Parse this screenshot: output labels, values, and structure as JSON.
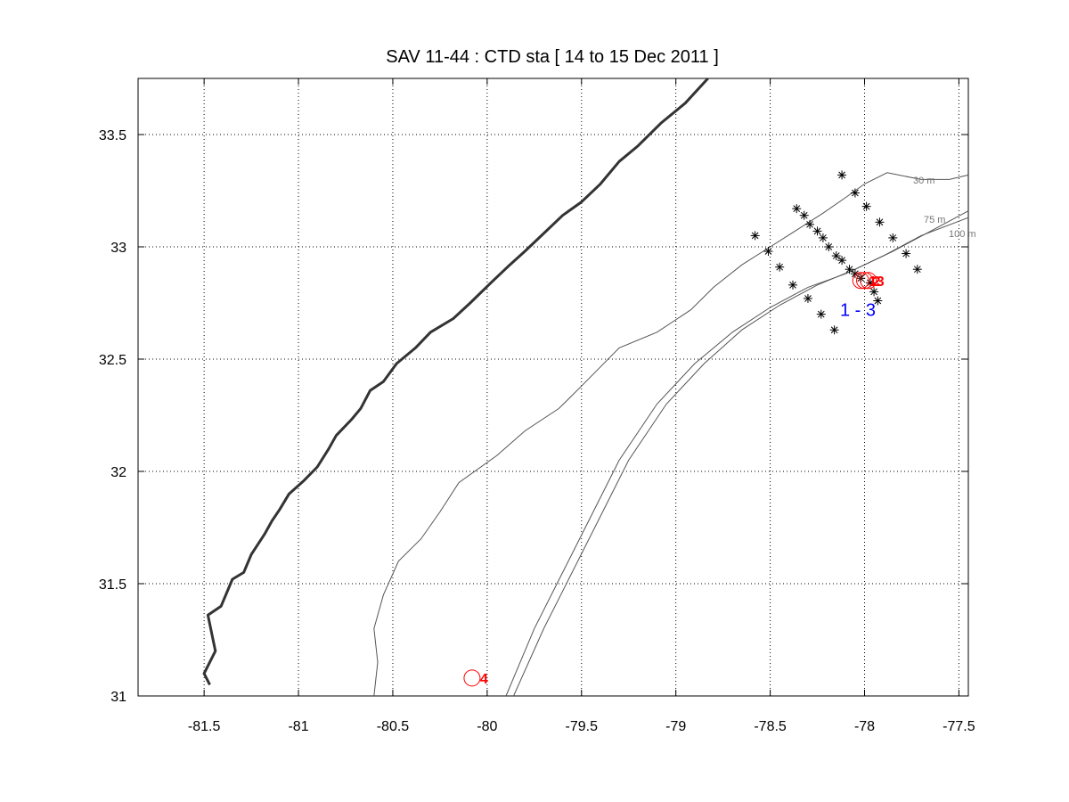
{
  "title": "SAV 11-44 : CTD  sta   [ 14 to 15 Dec 2011 ]",
  "x_ticks": [
    "-81.5",
    "-81",
    "-80.5",
    "-80",
    "-79.5",
    "-79",
    "-78.5",
    "-78",
    "-77.5"
  ],
  "y_ticks": [
    "31",
    "31.5",
    "32",
    "32.5",
    "33",
    "33.5"
  ],
  "contour_labels": [
    "30 m",
    "75 m",
    "100 m"
  ],
  "station_group_label": "1 - 3",
  "colors": {
    "coast": "#333333",
    "isobath": "#555555",
    "grid": "#000000",
    "station_marker": "#000000",
    "highlight_station": "#ff0000",
    "group_label": "#0000ff"
  },
  "chart_data": {
    "type": "scatter",
    "title": "SAV 11-44 : CTD  sta   [ 14 to 15 Dec 2011 ]",
    "xlim": [
      -81.85,
      -77.45
    ],
    "ylim": [
      31.0,
      33.75
    ],
    "grid": true,
    "x_ticks": [
      -81.5,
      -81,
      -80.5,
      -80,
      -79.5,
      -79,
      -78.5,
      -78,
      -77.5
    ],
    "y_ticks": [
      31,
      31.5,
      32,
      32.5,
      33,
      33.5
    ],
    "coastline": [
      [
        -81.47,
        31.05
      ],
      [
        -81.5,
        31.1
      ],
      [
        -81.44,
        31.2
      ],
      [
        -81.48,
        31.36
      ],
      [
        -81.41,
        31.4
      ],
      [
        -81.35,
        31.52
      ],
      [
        -81.29,
        31.55
      ],
      [
        -81.25,
        31.63
      ],
      [
        -81.18,
        31.72
      ],
      [
        -81.14,
        31.78
      ],
      [
        -81.1,
        31.83
      ],
      [
        -81.05,
        31.9
      ],
      [
        -80.97,
        31.96
      ],
      [
        -80.9,
        32.02
      ],
      [
        -80.84,
        32.1
      ],
      [
        -80.8,
        32.16
      ],
      [
        -80.72,
        32.23
      ],
      [
        -80.67,
        32.28
      ],
      [
        -80.62,
        32.36
      ],
      [
        -80.55,
        32.4
      ],
      [
        -80.48,
        32.48
      ],
      [
        -80.38,
        32.55
      ],
      [
        -80.3,
        32.62
      ],
      [
        -80.18,
        32.68
      ],
      [
        -80.09,
        32.75
      ],
      [
        -79.98,
        32.84
      ],
      [
        -79.88,
        32.92
      ],
      [
        -79.8,
        32.98
      ],
      [
        -79.7,
        33.06
      ],
      [
        -79.6,
        33.14
      ],
      [
        -79.5,
        33.2
      ],
      [
        -79.4,
        33.28
      ],
      [
        -79.3,
        33.38
      ],
      [
        -79.2,
        33.45
      ],
      [
        -79.08,
        33.55
      ],
      [
        -78.95,
        33.64
      ],
      [
        -78.83,
        33.75
      ]
    ],
    "isobaths": [
      {
        "label": "30 m",
        "points": [
          [
            -80.6,
            31.0
          ],
          [
            -80.58,
            31.15
          ],
          [
            -80.6,
            31.3
          ],
          [
            -80.55,
            31.45
          ],
          [
            -80.47,
            31.6
          ],
          [
            -80.35,
            31.7
          ],
          [
            -80.25,
            31.82
          ],
          [
            -80.15,
            31.95
          ],
          [
            -79.95,
            32.07
          ],
          [
            -79.8,
            32.18
          ],
          [
            -79.62,
            32.28
          ],
          [
            -79.5,
            32.38
          ],
          [
            -79.3,
            32.55
          ],
          [
            -79.1,
            32.62
          ],
          [
            -78.92,
            32.72
          ],
          [
            -78.8,
            32.82
          ],
          [
            -78.65,
            32.92
          ],
          [
            -78.5,
            33.0
          ],
          [
            -78.35,
            33.08
          ],
          [
            -78.22,
            33.15
          ],
          [
            -78.1,
            33.22
          ],
          [
            -78.0,
            33.28
          ],
          [
            -77.88,
            33.33
          ],
          [
            -77.7,
            33.3
          ],
          [
            -77.55,
            33.3
          ],
          [
            -77.45,
            33.32
          ]
        ]
      },
      {
        "label": "75 m",
        "points": [
          [
            -79.9,
            31.0
          ],
          [
            -79.75,
            31.3
          ],
          [
            -79.6,
            31.55
          ],
          [
            -79.45,
            31.8
          ],
          [
            -79.3,
            32.05
          ],
          [
            -79.1,
            32.3
          ],
          [
            -78.9,
            32.48
          ],
          [
            -78.7,
            32.62
          ],
          [
            -78.5,
            32.73
          ],
          [
            -78.3,
            32.82
          ],
          [
            -78.1,
            32.88
          ],
          [
            -77.9,
            32.96
          ],
          [
            -77.7,
            33.05
          ],
          [
            -77.45,
            33.13
          ]
        ]
      },
      {
        "label": "100 m",
        "points": [
          [
            -79.86,
            31.0
          ],
          [
            -79.7,
            31.3
          ],
          [
            -79.55,
            31.55
          ],
          [
            -79.4,
            31.8
          ],
          [
            -79.25,
            32.05
          ],
          [
            -79.05,
            32.3
          ],
          [
            -78.85,
            32.48
          ],
          [
            -78.65,
            32.63
          ],
          [
            -78.45,
            32.74
          ],
          [
            -78.25,
            32.83
          ],
          [
            -78.05,
            32.9
          ],
          [
            -77.85,
            32.98
          ],
          [
            -77.65,
            33.07
          ],
          [
            -77.45,
            33.16
          ]
        ]
      }
    ],
    "stations": [
      [
        -78.12,
        33.32
      ],
      [
        -78.05,
        33.24
      ],
      [
        -77.99,
        33.18
      ],
      [
        -77.92,
        33.11
      ],
      [
        -77.85,
        33.04
      ],
      [
        -77.78,
        32.97
      ],
      [
        -77.72,
        32.9
      ],
      [
        -78.36,
        33.17
      ],
      [
        -78.32,
        33.14
      ],
      [
        -78.29,
        33.1
      ],
      [
        -78.25,
        33.07
      ],
      [
        -78.22,
        33.04
      ],
      [
        -78.19,
        33.0
      ],
      [
        -78.15,
        32.96
      ],
      [
        -78.12,
        32.94
      ],
      [
        -78.08,
        32.9
      ],
      [
        -78.05,
        32.88
      ],
      [
        -78.02,
        32.86
      ],
      [
        -78.58,
        33.05
      ],
      [
        -78.51,
        32.98
      ],
      [
        -78.45,
        32.91
      ],
      [
        -78.38,
        32.83
      ],
      [
        -78.3,
        32.77
      ],
      [
        -78.23,
        32.7
      ],
      [
        -78.16,
        32.63
      ],
      [
        -77.97,
        32.84
      ],
      [
        -77.95,
        32.8
      ],
      [
        -77.93,
        32.76
      ]
    ],
    "highlight_stations": [
      {
        "label": "1",
        "lon": -78.02,
        "lat": 32.85
      },
      {
        "label": "2",
        "lon": -78.0,
        "lat": 32.85
      },
      {
        "label": "3",
        "lon": -77.98,
        "lat": 32.85
      },
      {
        "label": "4",
        "lon": -80.08,
        "lat": 31.08
      }
    ],
    "group_label_position": {
      "lon": -78.13,
      "lat": 32.72
    }
  }
}
